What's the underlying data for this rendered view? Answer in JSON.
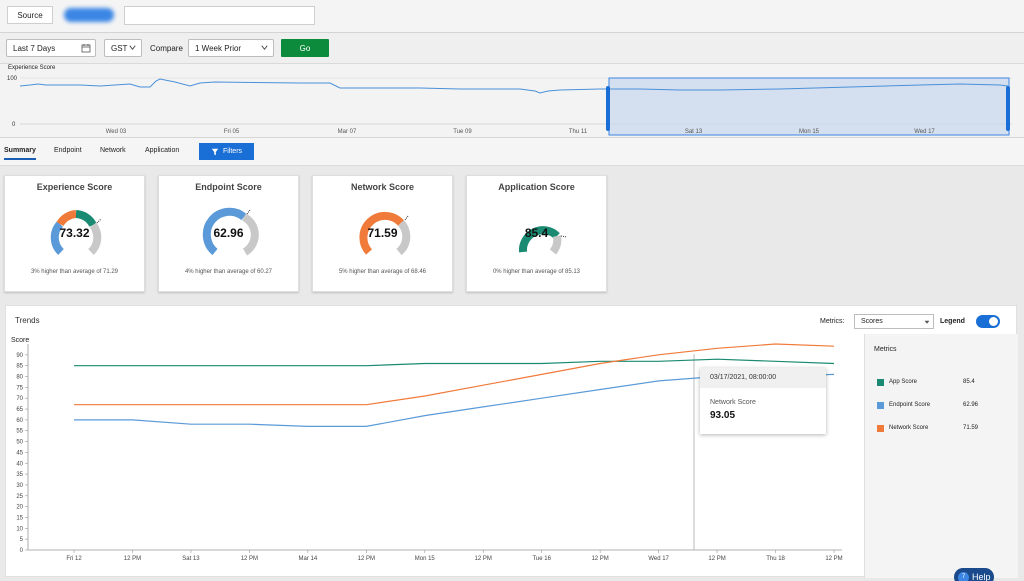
{
  "topbar": {
    "source_label": "Source"
  },
  "controls": {
    "date_range": "Last 7 Days",
    "timezone": "GST",
    "compare_label": "Compare",
    "compare_value": "1 Week Prior",
    "go_label": "Go"
  },
  "overview": {
    "title": "Experience Score",
    "y_top": "100",
    "y_bottom": "0",
    "x_labels": [
      "Wed 03",
      "Fri 05",
      "Mar 07",
      "Tue 09",
      "Thu 11",
      "Sat 13",
      "Mon 15",
      "Wed 17"
    ]
  },
  "tabs": {
    "items": [
      "Summary",
      "Endpoint",
      "Network",
      "Application"
    ],
    "active": "Summary",
    "filters_label": "Filters"
  },
  "cards": [
    {
      "title": "Experience Score",
      "value": "73.32",
      "subtitle": "3% higher than average of 71.29"
    },
    {
      "title": "Endpoint Score",
      "value": "62.96",
      "subtitle": "4% higher than average of 60.27"
    },
    {
      "title": "Network Score",
      "value": "71.59",
      "subtitle": "5% higher than average of 68.46"
    },
    {
      "title": "Application Score",
      "value": "85.4",
      "subtitle": "0% higher than average of 85.13"
    }
  ],
  "trends": {
    "title": "Trends",
    "metrics_label": "Metrics:",
    "metrics_value": "Scores",
    "legend_label": "Legend",
    "score_label": "Score",
    "tooltip": {
      "datetime": "03/17/2021, 08:00:00",
      "series": "Network Score",
      "value": "93.05"
    }
  },
  "metrics_panel": {
    "title": "Metrics",
    "items": [
      {
        "name": "App Score",
        "value": "85.4",
        "color": "#1a8a72"
      },
      {
        "name": "Endpoint Score",
        "value": "62.96",
        "color": "#5b9ad8"
      },
      {
        "name": "Network Score",
        "value": "71.59",
        "color": "#f07a3a"
      }
    ]
  },
  "help": {
    "label": "Help",
    "badge": "7"
  },
  "chart_data": {
    "type": "line",
    "ylabel": "Score",
    "ylim": [
      0,
      100
    ],
    "yticks": [
      0,
      5,
      10,
      15,
      20,
      25,
      30,
      35,
      40,
      45,
      50,
      55,
      60,
      65,
      70,
      75,
      80,
      85,
      90
    ],
    "x": [
      "Fri 12",
      "12 PM",
      "Sat 13",
      "12 PM",
      "Mar 14",
      "12 PM",
      "Mon 15",
      "12 PM",
      "Tue 16",
      "12 PM",
      "Wed 17",
      "12 PM",
      "Thu 18",
      "12 PM"
    ],
    "series": [
      {
        "name": "App Score",
        "color": "#1a8a72",
        "values": [
          85,
          85,
          85,
          85,
          85,
          85,
          86,
          86,
          86,
          87,
          87,
          88,
          87,
          86
        ]
      },
      {
        "name": "Endpoint Score",
        "color": "#5b9ad8",
        "values": [
          60,
          60,
          58,
          58,
          57,
          57,
          62,
          66,
          70,
          74,
          78,
          80,
          80,
          81
        ]
      },
      {
        "name": "Network Score",
        "color": "#f07a3a",
        "values": [
          67,
          67,
          67,
          67,
          67,
          67,
          71,
          76,
          81,
          86,
          90,
          93,
          95,
          94
        ]
      }
    ]
  }
}
